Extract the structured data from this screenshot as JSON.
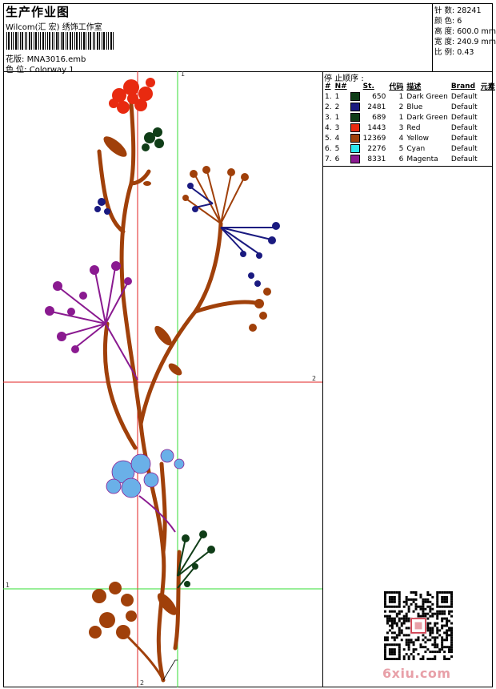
{
  "header": {
    "title": "生产作业图",
    "company": "Wilcom(汇 宏) 绣饰工作室",
    "design_label": "花版:",
    "design_value": "MNA3016.emb",
    "colorway_label": "色 位:",
    "colorway_value": "Colorway 1"
  },
  "stats": {
    "stitches_label": "针 数:",
    "stitches_value": "28241",
    "colors_label": "颜 色:",
    "colors_value": "6",
    "height_label": "高 度:",
    "height_value": "600.0 mm",
    "width_label": "宽 度:",
    "width_value": "240.9 mm",
    "scale_label": "比 例:",
    "scale_value": "0.43"
  },
  "stop_sequence": {
    "title": "停 止顺序 :",
    "columns": [
      "#",
      "N#",
      "St.",
      "代码",
      "描述",
      "Brand",
      "元素"
    ],
    "rows": [
      {
        "idx": "1.",
        "n": "1",
        "st": "650",
        "code": "1",
        "desc": "Dark Green",
        "brand": "Default",
        "color": "#0f3d17"
      },
      {
        "idx": "2.",
        "n": "2",
        "st": "2481",
        "code": "2",
        "desc": "Blue",
        "brand": "Default",
        "color": "#1a1a80"
      },
      {
        "idx": "3.",
        "n": "1",
        "st": "689",
        "code": "1",
        "desc": "Dark Green",
        "brand": "Default",
        "color": "#0f3d17"
      },
      {
        "idx": "4.",
        "n": "3",
        "st": "1443",
        "code": "3",
        "desc": "Red",
        "brand": "Default",
        "color": "#e82a10"
      },
      {
        "idx": "5.",
        "n": "4",
        "st": "12369",
        "code": "4",
        "desc": "Yellow",
        "brand": "Default",
        "color": "#a0400a"
      },
      {
        "idx": "6.",
        "n": "5",
        "st": "2276",
        "code": "5",
        "desc": "Cyan",
        "brand": "Default",
        "color": "#2ee8ee"
      },
      {
        "idx": "7.",
        "n": "6",
        "st": "8331",
        "code": "6",
        "desc": "Magenta",
        "brand": "Default",
        "color": "#8a1a90"
      }
    ]
  },
  "axes": {
    "v_green": "1",
    "h_red": "2",
    "h_green": "1",
    "v_red": "2"
  },
  "watermark": "6xiu.com",
  "colors": {
    "stem": "#a0400a",
    "red": "#e82a10",
    "dark_green": "#0f3d17",
    "blue": "#1a1a80",
    "magenta": "#8a1a90",
    "cyan": "#6ab0e8",
    "guide_green": "#33dd33",
    "guide_red": "#e02020"
  }
}
